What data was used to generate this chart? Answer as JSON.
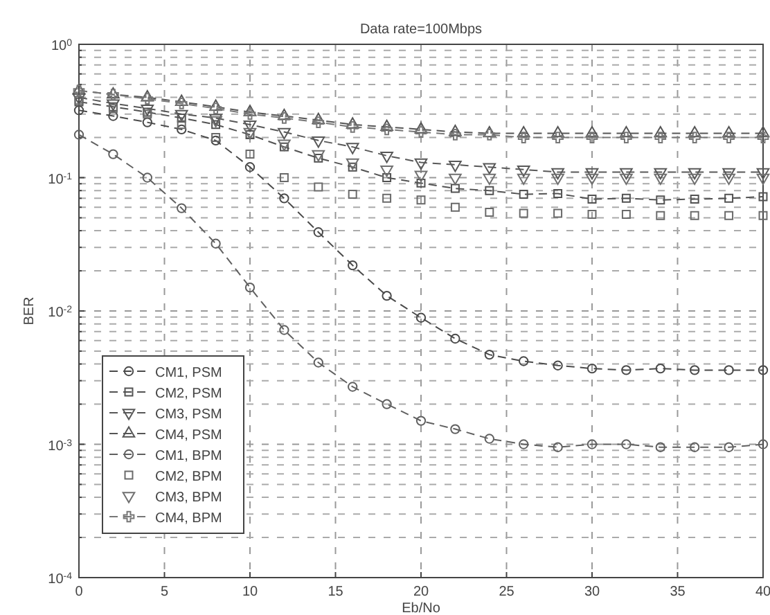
{
  "chart_data": {
    "type": "line",
    "title": "Data rate=100Mbps",
    "xlabel": "Eb/No",
    "ylabel": "BER",
    "log": "y",
    "grid": true,
    "legend": "bottom left",
    "line_style": "dashed",
    "x": [
      0,
      2,
      4,
      6,
      8,
      10,
      12,
      14,
      16,
      18,
      20,
      22,
      24,
      26,
      28,
      30,
      32,
      34,
      36,
      38,
      40
    ],
    "xlim": [
      0,
      40
    ],
    "xticks": [
      0,
      5,
      10,
      15,
      20,
      25,
      30,
      35,
      40
    ],
    "ylim": [
      0.0001,
      1
    ],
    "yticks": [
      {
        "value": 0.0001,
        "label": "10$^{-4}$"
      },
      {
        "value": 0.001,
        "label": "10$^{-3}$"
      },
      {
        "value": 0.01,
        "label": "10$^{-2}$"
      },
      {
        "value": 0.1,
        "label": "10$^{-1}$"
      },
      {
        "value": 1,
        "label": "10$^{0}$"
      }
    ],
    "series": [
      {
        "name": "CM1, PSM",
        "color": "#4a4a4a",
        "marker": "circle",
        "values": [
          0.32,
          0.29,
          0.26,
          0.23,
          0.19,
          0.12,
          0.07,
          0.039,
          0.022,
          0.013,
          0.0089,
          0.0062,
          0.0047,
          0.0042,
          0.0039,
          0.0037,
          0.0036,
          0.0037,
          0.0036,
          0.0036,
          0.0036
        ]
      },
      {
        "name": "CM2, PSM",
        "color": "#525252",
        "marker": "square",
        "values": [
          0.37,
          0.34,
          0.31,
          0.28,
          0.25,
          0.21,
          0.17,
          0.14,
          0.12,
          0.1,
          0.091,
          0.083,
          0.08,
          0.075,
          0.076,
          0.069,
          0.07,
          0.068,
          0.069,
          0.07,
          0.072
        ]
      },
      {
        "name": "CM3, PSM",
        "color": "#585858",
        "marker": "triangle-down",
        "values": [
          0.4,
          0.36,
          0.33,
          0.3,
          0.28,
          0.25,
          0.22,
          0.19,
          0.17,
          0.146,
          0.13,
          0.125,
          0.12,
          0.115,
          0.11,
          0.11,
          0.11,
          0.11,
          0.11,
          0.11,
          0.11
        ]
      },
      {
        "name": "CM4, PSM",
        "color": "#555555",
        "marker": "triangle",
        "values": [
          0.45,
          0.42,
          0.4,
          0.37,
          0.34,
          0.31,
          0.29,
          0.27,
          0.25,
          0.24,
          0.23,
          0.22,
          0.215,
          0.215,
          0.215,
          0.215,
          0.215,
          0.215,
          0.215,
          0.215,
          0.215
        ]
      },
      {
        "name": "CM1, BPM",
        "color": "#606060",
        "marker": "circle",
        "values": [
          0.21,
          0.15,
          0.1,
          0.059,
          0.032,
          0.015,
          0.0072,
          0.0041,
          0.0027,
          0.002,
          0.0015,
          0.0013,
          0.0011,
          0.001,
          0.00095,
          0.001,
          0.001,
          0.00095,
          0.00095,
          0.00095,
          0.001
        ]
      },
      {
        "name": "CM2, BPM",
        "type": "scatter",
        "color": "#6a6a6a",
        "marker": "square",
        "values": [
          0.38,
          0.33,
          0.3,
          0.25,
          0.2,
          0.15,
          0.1,
          0.085,
          0.075,
          0.07,
          0.068,
          0.06,
          0.055,
          0.054,
          0.054,
          0.053,
          0.053,
          0.052,
          0.052,
          0.052,
          0.052
        ]
      },
      {
        "name": "CM3, BPM",
        "type": "scatter",
        "color": "#707070",
        "marker": "triangle-down",
        "values": [
          null,
          null,
          null,
          null,
          0.27,
          0.22,
          0.18,
          0.15,
          0.13,
          0.115,
          0.105,
          0.1,
          0.1,
          0.1,
          0.1,
          0.1,
          0.1,
          0.1,
          0.1,
          0.1,
          0.1
        ]
      },
      {
        "name": "CM4, BPM",
        "color": "#777777",
        "marker": "cross",
        "values": [
          0.45,
          0.42,
          0.39,
          0.36,
          0.33,
          0.3,
          0.28,
          0.26,
          0.24,
          0.23,
          0.22,
          0.21,
          0.21,
          0.2,
          0.2,
          0.2,
          0.2,
          0.2,
          0.2,
          0.2,
          0.2
        ]
      }
    ]
  }
}
